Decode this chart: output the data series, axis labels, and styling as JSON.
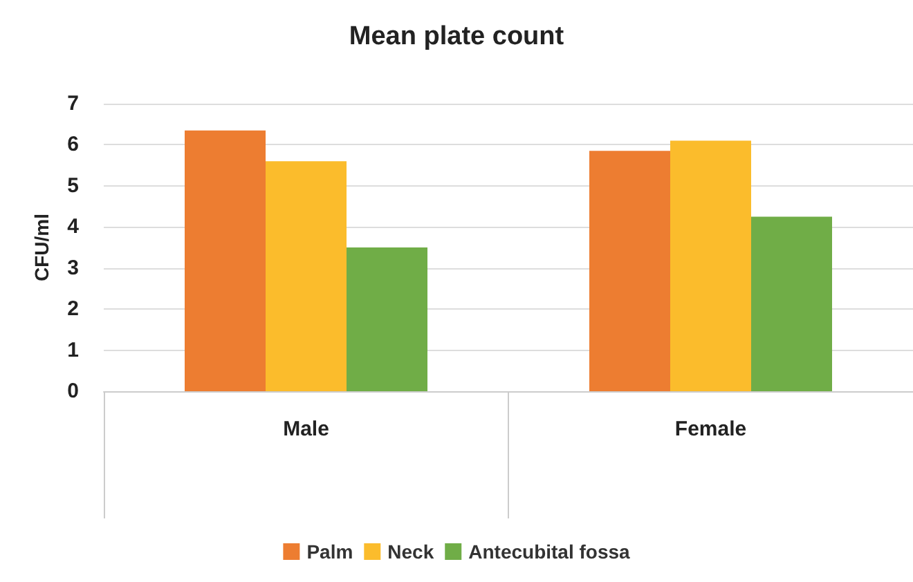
{
  "chart_data": {
    "type": "bar",
    "title": "Mean plate count",
    "ylabel": "CFU/ml",
    "categories": [
      "Male",
      "Female"
    ],
    "series": [
      {
        "name": "Palm",
        "color": "#ed7d31",
        "values": [
          6.35,
          5.85
        ]
      },
      {
        "name": "Neck",
        "color": "#fbbc2c",
        "values": [
          5.6,
          6.1
        ]
      },
      {
        "name": "Antecubital fossa",
        "color": "#70ad47",
        "values": [
          3.5,
          4.25
        ]
      }
    ],
    "ylim": [
      0,
      7
    ],
    "yticks": [
      0,
      1,
      2,
      3,
      4,
      5,
      6,
      7
    ],
    "grid": "y",
    "legend": "bottom"
  }
}
